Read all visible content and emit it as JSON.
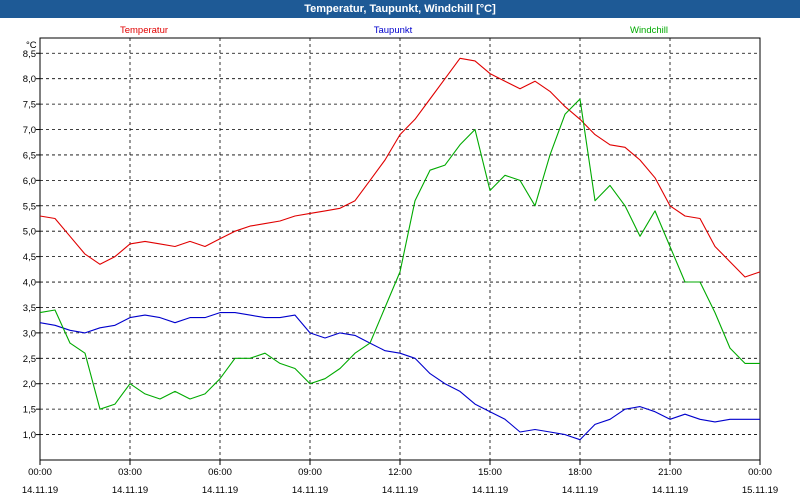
{
  "window": {
    "title": "Temperatur, Taupunkt, Windchill [°C]"
  },
  "chart_data": {
    "type": "line",
    "title": "Temperatur, Taupunkt, Windchill [°C]",
    "ylabel": "°C",
    "ylim": [
      0.5,
      8.8
    ],
    "xlim": [
      "2019-11-14 00:00",
      "2019-11-15 00:00"
    ],
    "grid": true,
    "legend": "top",
    "yticks": [
      "1,0",
      "1,5",
      "2,0",
      "2,5",
      "3,0",
      "3,5",
      "4,0",
      "4,5",
      "5,0",
      "5,5",
      "6,0",
      "6,5",
      "7,0",
      "7,5",
      "8,0",
      "8,5"
    ],
    "xticks": [
      {
        "time": "00:00",
        "date": "14.11.19"
      },
      {
        "time": "03:00",
        "date": "14.11.19"
      },
      {
        "time": "06:00",
        "date": "14.11.19"
      },
      {
        "time": "09:00",
        "date": "14.11.19"
      },
      {
        "time": "12:00",
        "date": "14.11.19"
      },
      {
        "time": "15:00",
        "date": "14.11.19"
      },
      {
        "time": "18:00",
        "date": "14.11.19"
      },
      {
        "time": "21:00",
        "date": "14.11.19"
      },
      {
        "time": "00:00",
        "date": "15.11.19"
      }
    ],
    "x": [
      0,
      0.5,
      1,
      1.5,
      2,
      2.5,
      3,
      3.5,
      4,
      4.5,
      5,
      5.5,
      6,
      6.5,
      7,
      7.5,
      8,
      8.5,
      9,
      9.5,
      10,
      10.5,
      11,
      11.5,
      12,
      12.5,
      13,
      13.5,
      14,
      14.5,
      15,
      15.5,
      16,
      16.5,
      17,
      17.5,
      18,
      18.5,
      19,
      19.5,
      20,
      20.5,
      21,
      21.5,
      22,
      22.5,
      23,
      23.5,
      24
    ],
    "series": [
      {
        "name": "Temperatur",
        "color": "#e00000",
        "values": [
          5.3,
          5.25,
          4.9,
          4.55,
          4.35,
          4.5,
          4.75,
          4.8,
          4.75,
          4.7,
          4.8,
          4.7,
          4.85,
          5.0,
          5.1,
          5.15,
          5.2,
          5.3,
          5.35,
          5.4,
          5.45,
          5.6,
          6.0,
          6.4,
          6.9,
          7.2,
          7.6,
          8.0,
          8.4,
          8.35,
          8.1,
          7.95,
          7.8,
          7.95,
          7.75,
          7.45,
          7.2,
          6.9,
          6.7,
          6.65,
          6.4,
          6.05,
          5.5,
          5.3,
          5.25,
          4.7,
          4.4,
          4.1,
          4.2
        ]
      },
      {
        "name": "Taupunkt",
        "color": "#0000cc",
        "values": [
          3.2,
          3.15,
          3.05,
          3.0,
          3.1,
          3.15,
          3.3,
          3.35,
          3.3,
          3.2,
          3.3,
          3.3,
          3.4,
          3.4,
          3.35,
          3.3,
          3.3,
          3.35,
          3.0,
          2.9,
          3.0,
          2.95,
          2.8,
          2.65,
          2.6,
          2.5,
          2.2,
          2.0,
          1.85,
          1.6,
          1.45,
          1.3,
          1.05,
          1.1,
          1.05,
          1.0,
          0.9,
          1.2,
          1.3,
          1.5,
          1.55,
          1.45,
          1.3,
          1.4,
          1.3,
          1.25,
          1.3,
          1.3,
          1.3
        ]
      },
      {
        "name": "Windchill",
        "color": "#00aa00",
        "values": [
          3.4,
          3.45,
          2.8,
          2.6,
          1.5,
          1.6,
          2.0,
          1.8,
          1.7,
          1.85,
          1.7,
          1.8,
          2.1,
          2.5,
          2.5,
          2.6,
          2.4,
          2.3,
          2.0,
          2.1,
          2.3,
          2.6,
          2.8,
          3.5,
          4.2,
          5.6,
          6.2,
          6.3,
          6.7,
          7.0,
          5.8,
          6.1,
          6.0,
          5.5,
          6.5,
          7.3,
          7.6,
          5.6,
          5.9,
          5.5,
          4.9,
          5.4,
          4.7,
          4.0,
          4.0,
          3.4,
          2.7,
          2.4,
          2.4
        ]
      }
    ]
  }
}
